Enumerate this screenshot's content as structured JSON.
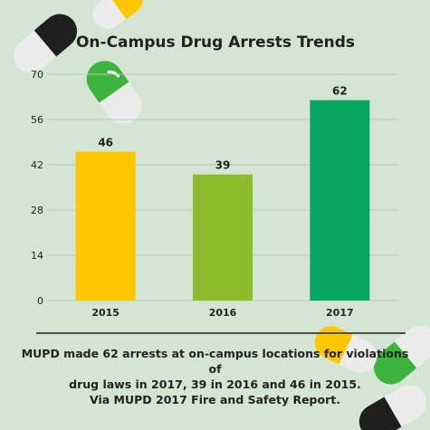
{
  "chart_data": {
    "type": "bar",
    "title": "On-Campus Drug Arrests Trends",
    "categories": [
      "2015",
      "2016",
      "2017"
    ],
    "values": [
      46,
      39,
      62
    ],
    "colors": [
      "#fec700",
      "#8cbd2c",
      "#07a660"
    ],
    "y_ticks": [
      0,
      14,
      28,
      42,
      56,
      70
    ],
    "ylim": [
      0,
      70
    ],
    "xlabel": "",
    "ylabel": "",
    "grid": true,
    "legend": "none"
  },
  "caption": {
    "line1": "MUPD made 62 arrests at on-campus locations for violations of",
    "line2": "drug laws in 2017, 39 in 2016 and 46 in 2015.",
    "line3": "Via MUPD 2017 Fire and Safety Report."
  },
  "decoration": {
    "pill_icons": [
      "pill-icon",
      "pill-icon",
      "pill-icon",
      "pill-icon",
      "pill-icon"
    ],
    "pill_colors": [
      "#1f1f1f",
      "#3bb33c",
      "#fec700",
      "#ececec"
    ]
  }
}
